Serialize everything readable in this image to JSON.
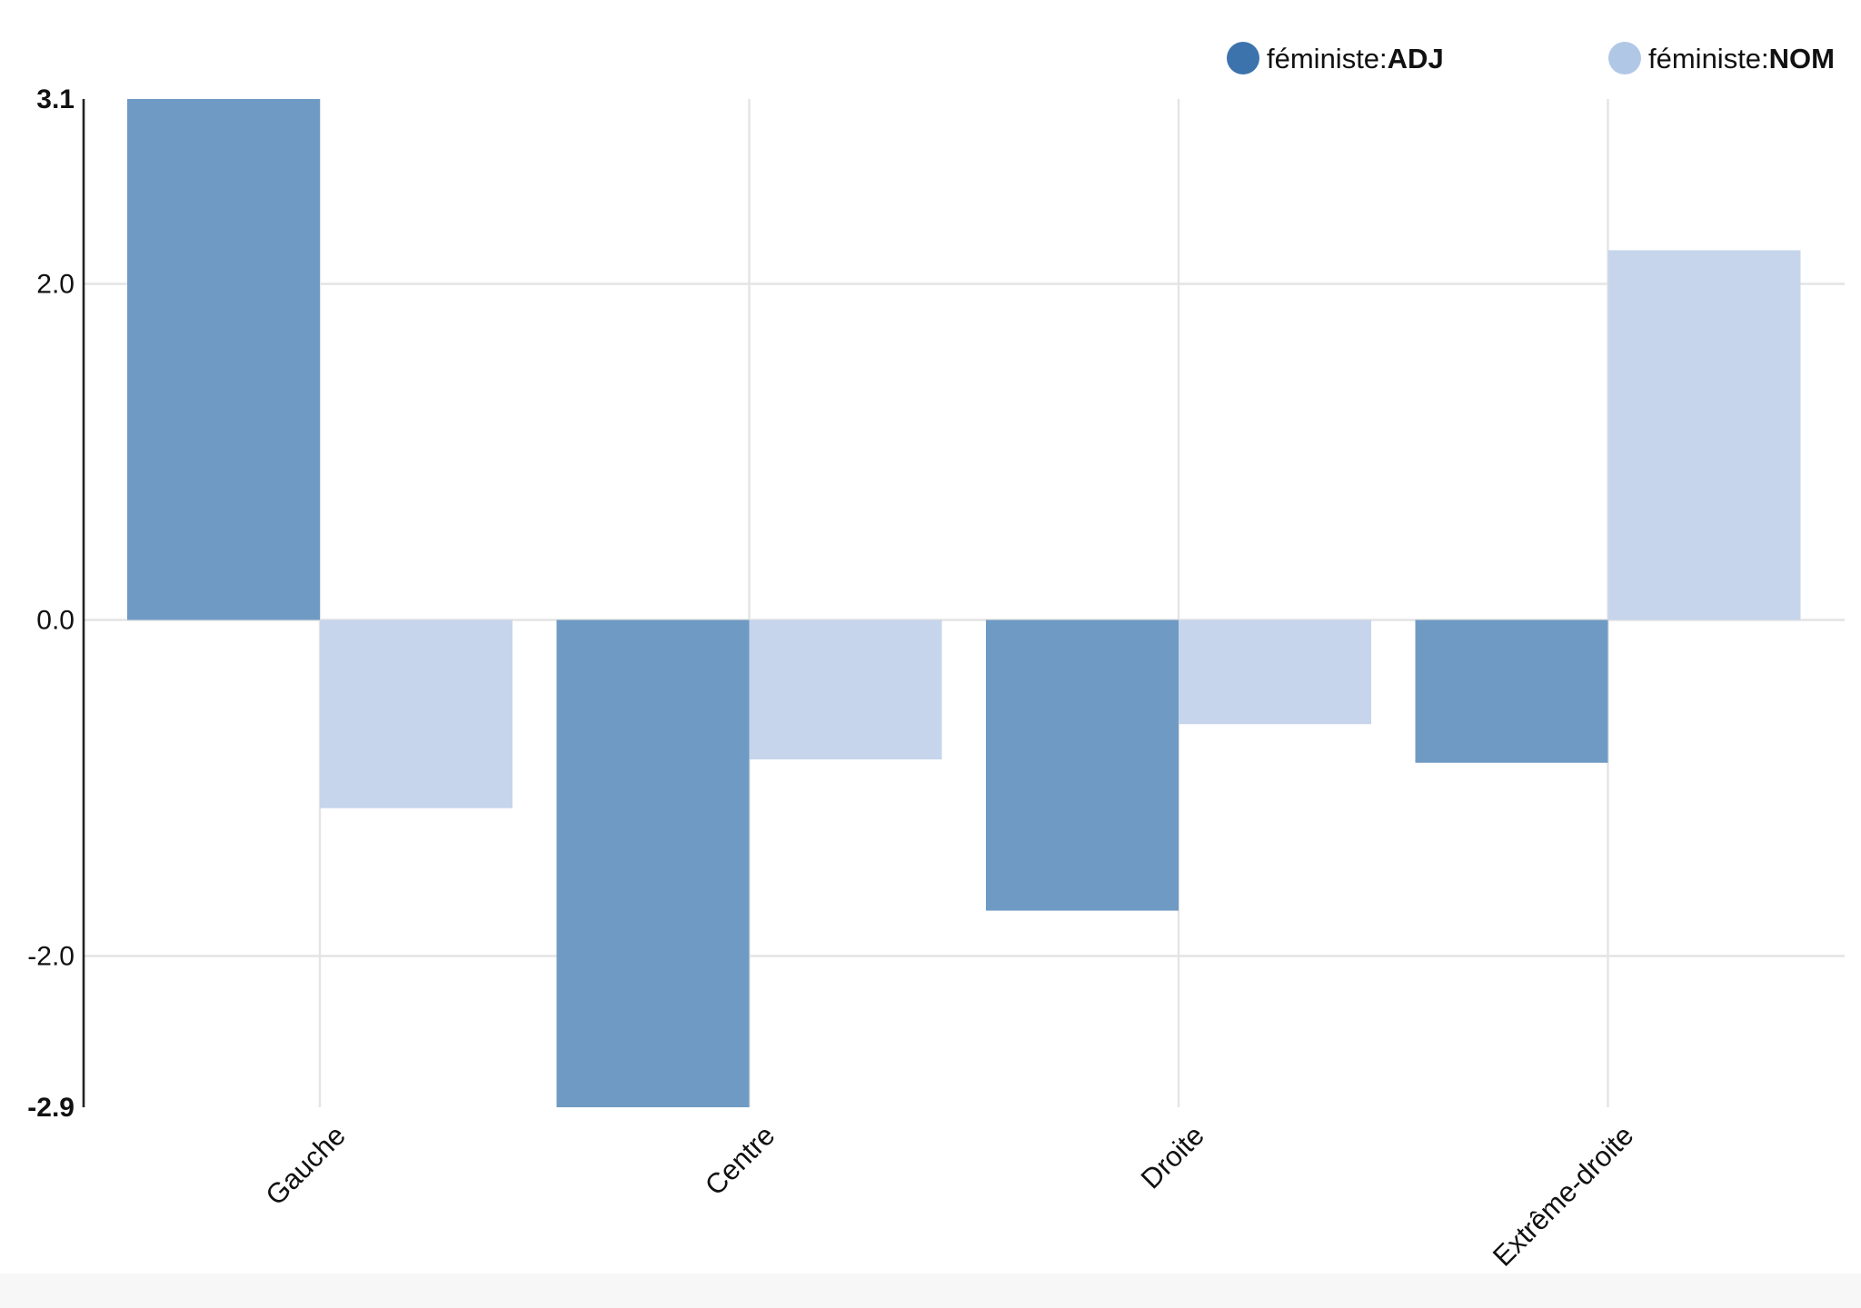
{
  "chart_data": {
    "type": "bar",
    "categories": [
      "Gauche",
      "Centre",
      "Droite",
      "Extrême-droite"
    ],
    "series": [
      {
        "name": "féministe:ADJ",
        "color": "#6f9ac4",
        "legend_color": "#3d73ad",
        "legend_word": "féministe",
        "legend_tag": "ADJ",
        "values": [
          3.1,
          -2.9,
          -1.73,
          -0.85
        ]
      },
      {
        "name": "féministe:NOM",
        "color": "#c6d5eb",
        "legend_color": "#b1c7e6",
        "legend_word": "féministe",
        "legend_tag": "NOM",
        "values": [
          -1.12,
          -0.83,
          -0.62,
          2.2
        ]
      }
    ],
    "ylim": [
      -2.9,
      3.1
    ],
    "yticks": [
      {
        "value": 3.1,
        "label": "3.1",
        "bold": true
      },
      {
        "value": 2.0,
        "label": "2.0",
        "bold": false
      },
      {
        "value": 0.0,
        "label": "0.0",
        "bold": false
      },
      {
        "value": -2.0,
        "label": "-2.0",
        "bold": false
      },
      {
        "value": -2.9,
        "label": "-2.9",
        "bold": true
      }
    ],
    "legend_position": "top-right",
    "grid": true
  }
}
